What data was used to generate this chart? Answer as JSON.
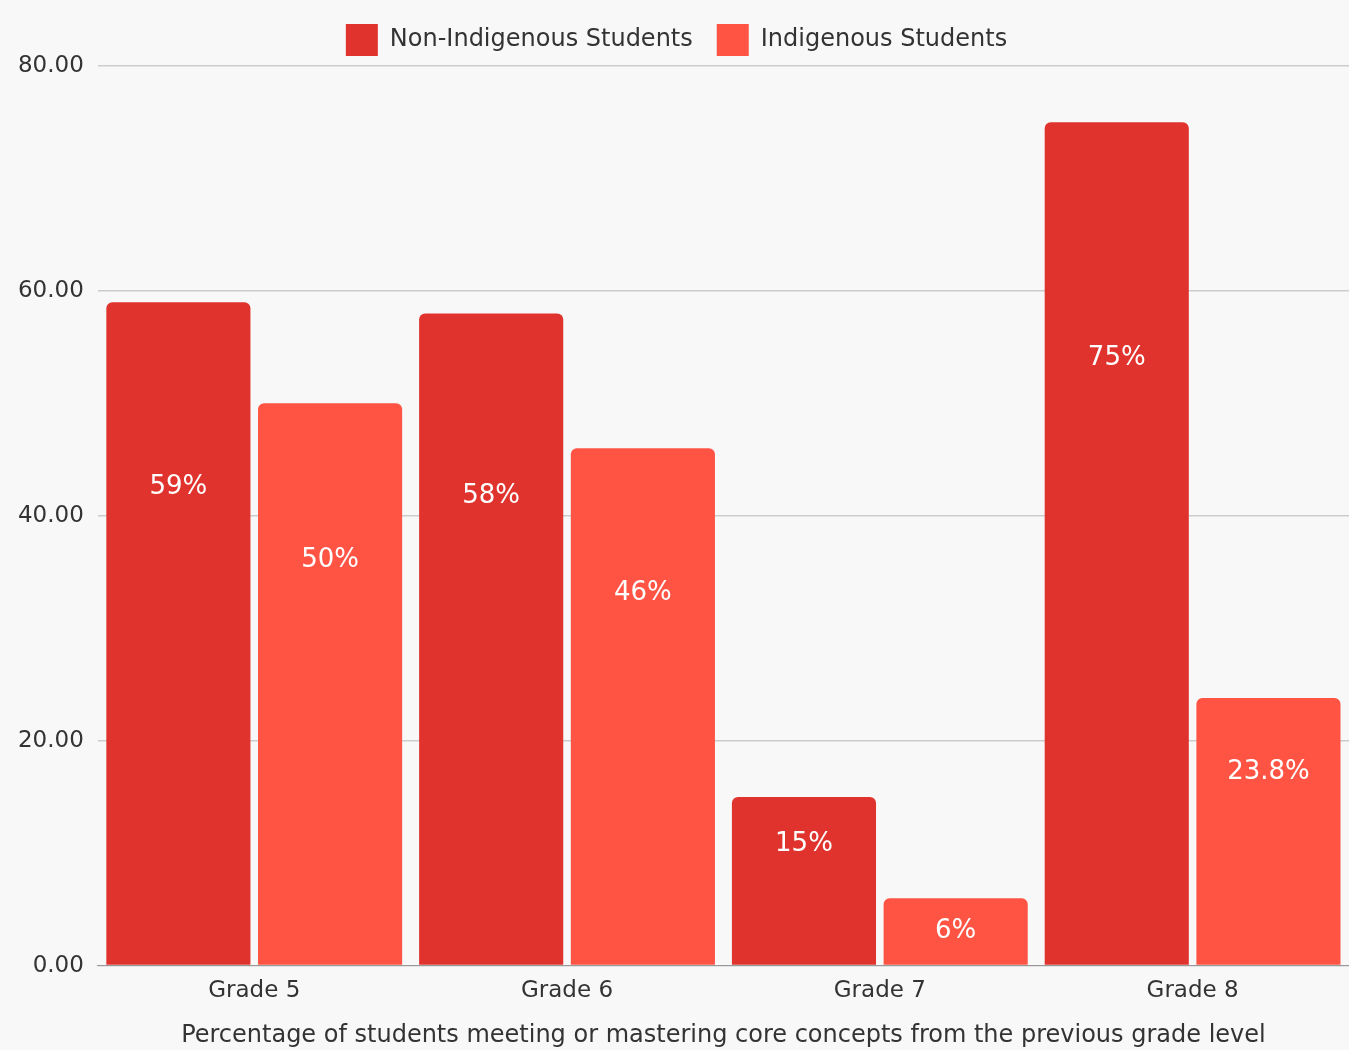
{
  "chart_data": {
    "type": "bar",
    "xlabel": "Percentage of students meeting or mastering core concepts from the previous grade level",
    "categories": [
      "Grade 5",
      "Grade 6",
      "Grade 7",
      "Grade 8"
    ],
    "series": [
      {
        "name": "Non-Indigenous Students",
        "color": "#e0332d",
        "values": [
          59,
          58,
          15,
          75
        ],
        "value_labels": [
          "59%",
          "58%",
          "15%",
          "75%"
        ]
      },
      {
        "name": "Indigenous Students",
        "color": "#ff5444",
        "values": [
          50,
          46,
          6,
          23.8
        ],
        "value_labels": [
          "50%",
          "46%",
          "6%",
          "23.8%"
        ]
      }
    ],
    "ylim": [
      0,
      80
    ],
    "yticks": [
      {
        "value": 0,
        "label": "0.00"
      },
      {
        "value": 20,
        "label": "20.00"
      },
      {
        "value": 40,
        "label": "40.00"
      },
      {
        "value": 60,
        "label": "60.00"
      },
      {
        "value": 80,
        "label": "80.00"
      }
    ],
    "grid": "y",
    "legend": "top"
  }
}
